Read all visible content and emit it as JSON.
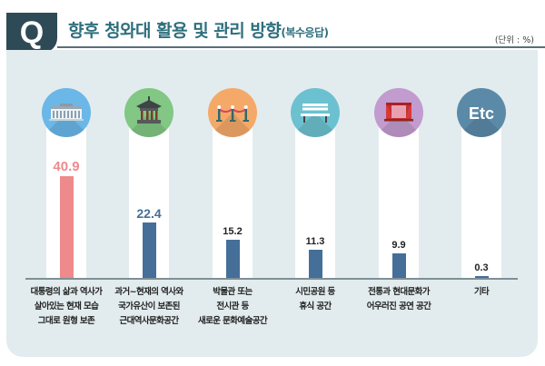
{
  "header": {
    "q_label": "Q",
    "title": "향후 청와대 활용 및 관리 방향",
    "title_sub": "(복수응답)",
    "unit": "(단위 : %)"
  },
  "colors": {
    "highlight_bar": "#ee8a8c",
    "bar": "#456f98",
    "highlight_label": "#ee8a8c",
    "second_label": "#456f98",
    "label": "#222222"
  },
  "icons": [
    {
      "name": "palace-building-icon",
      "color": "#6ab7e8"
    },
    {
      "name": "pavilion-icon",
      "color": "#82c784"
    },
    {
      "name": "museum-rope-barrier-icon",
      "color": "#f5a969"
    },
    {
      "name": "park-bench-icon",
      "color": "#6cc1d0"
    },
    {
      "name": "theater-stage-icon",
      "color": "#c29bcf"
    },
    {
      "name": "etc-icon",
      "color": "#5b8aa8",
      "text": "Etc"
    }
  ],
  "chart_data": {
    "type": "bar",
    "title": "향후 청와대 활용 및 관리 방향(복수응답)",
    "unit": "%",
    "categories": [
      [
        "대통령의 삶과 역사가",
        "살아있는 현재 모습",
        "그대로 원형 보존"
      ],
      [
        "과거~현재의 역사와",
        "국가유산이 보존된",
        "근대역사문화공간"
      ],
      [
        "박물관 또는",
        "전시관 등",
        "새로운 문화예술공간"
      ],
      [
        "시민공원 등",
        "휴식 공간"
      ],
      [
        "전통과 현대문화가",
        "어우러진 공연 공간"
      ],
      [
        "기타"
      ]
    ],
    "values": [
      40.9,
      22.4,
      15.2,
      11.3,
      9.9,
      0.3
    ],
    "value_labels": [
      "40.9",
      "22.4",
      "15.2",
      "11.3",
      "9.9",
      "0.3"
    ],
    "ylim": [
      0,
      45
    ],
    "grid": false
  }
}
